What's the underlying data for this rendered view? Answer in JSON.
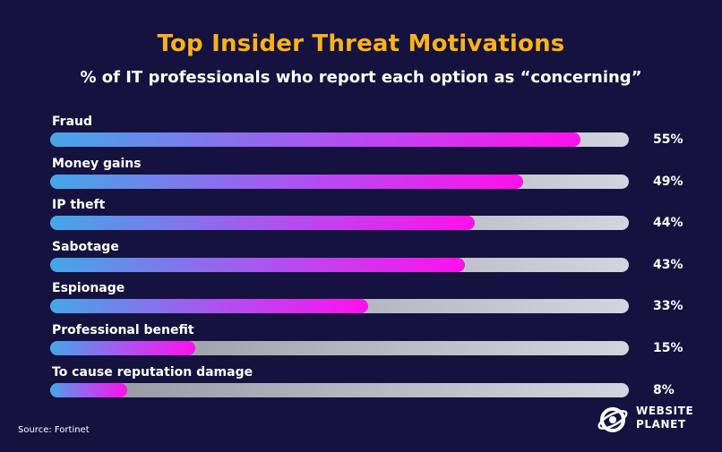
{
  "title": "Top Insider Threat Motivations",
  "subtitle": "% of IT professionals who report each option as “concerning”",
  "source": "Source: Fortinet",
  "brand": {
    "line1": "WEBSITE",
    "line2": "PLANET",
    "icon": "website-planet-logo-icon"
  },
  "colors": {
    "background": "#15123f",
    "title": "#f9b21b",
    "bar_start": "#44a7e8",
    "bar_end": "#ff10ec",
    "track": "#d2d5de"
  },
  "chart_data": {
    "type": "bar",
    "orientation": "horizontal",
    "categories": [
      "Fraud",
      "Money gains",
      "IP theft",
      "Sabotage",
      "Espionage",
      "Professional benefit",
      "To cause reputation damage"
    ],
    "values": [
      55,
      49,
      44,
      43,
      33,
      15,
      8
    ],
    "value_labels": [
      "55%",
      "49%",
      "44%",
      "43%",
      "33%",
      "15%",
      "8%"
    ],
    "xlim": [
      0,
      60
    ],
    "grid": false,
    "legend": "none"
  }
}
